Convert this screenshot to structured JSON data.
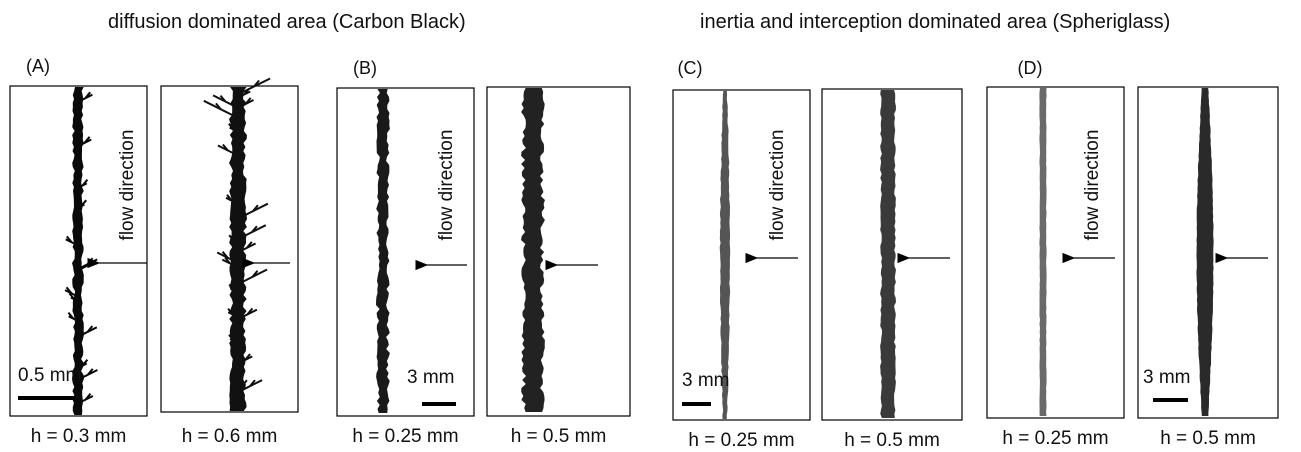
{
  "headings": [
    "diffusion dominated area (Carbon Black)",
    "inertia and interception dominated area (Spheriglass)"
  ],
  "panels": [
    {
      "label": "(A)",
      "images": [
        {
          "caption": "h = 0.3 mm",
          "flow_label": "flow direction",
          "scale_bar": "0.5 mm"
        },
        {
          "caption": "h = 0.6 mm"
        }
      ]
    },
    {
      "label": "(B)",
      "images": [
        {
          "caption": "h = 0.25 mm",
          "flow_label": "flow direction",
          "scale_bar": "3 mm"
        },
        {
          "caption": "h = 0.5 mm"
        }
      ]
    },
    {
      "label": "(C)",
      "images": [
        {
          "caption": "h = 0.25 mm",
          "flow_label": "flow direction",
          "scale_bar": "3 mm"
        },
        {
          "caption": "h = 0.5 mm"
        }
      ]
    },
    {
      "label": "(D)",
      "images": [
        {
          "caption": "h = 0.25 mm",
          "flow_label": "flow direction"
        },
        {
          "caption": "h = 0.5 mm",
          "scale_bar": "3 mm"
        }
      ]
    }
  ]
}
